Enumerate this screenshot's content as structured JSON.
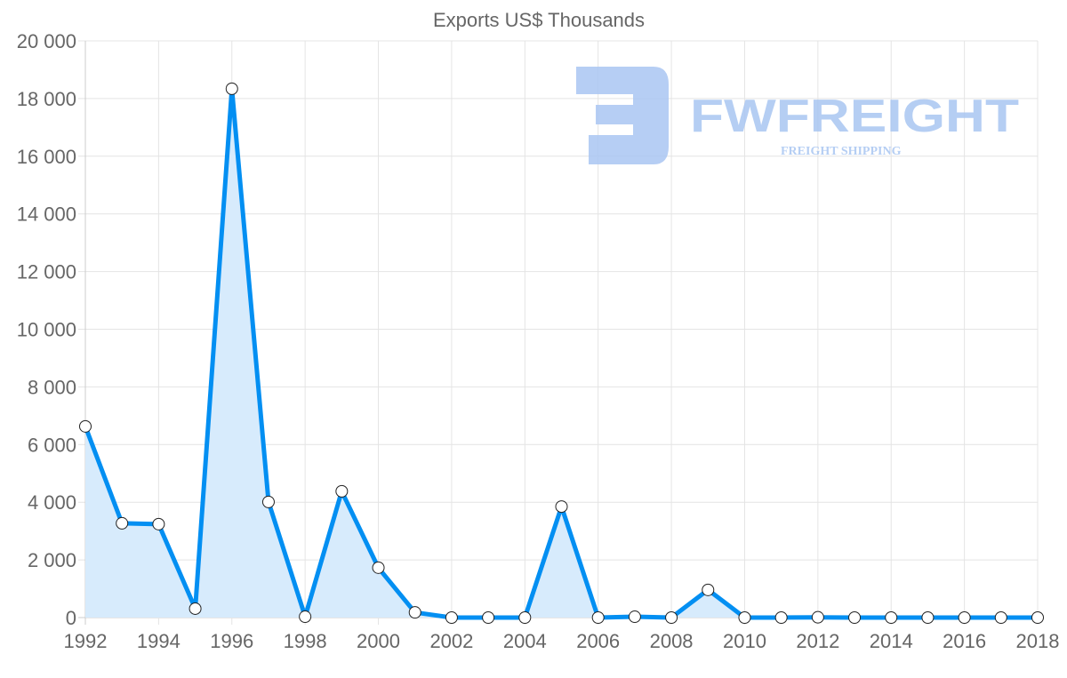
{
  "chart_data": {
    "type": "area",
    "title": "Exports US$ Thousands",
    "xlabel": "",
    "ylabel": "",
    "ylim": [
      0,
      20000
    ],
    "yticks": [
      "0",
      "2 000",
      "4 000",
      "6 000",
      "8 000",
      "10 000",
      "12 000",
      "14 000",
      "16 000",
      "18 000",
      "20 000"
    ],
    "xticks": [
      "1992",
      "1994",
      "1996",
      "1998",
      "2000",
      "2002",
      "2004",
      "2006",
      "2008",
      "2010",
      "2012",
      "2014",
      "2016",
      "2018"
    ],
    "grid": true,
    "x": [
      1992,
      1993,
      1994,
      1995,
      1996,
      1997,
      1998,
      1999,
      2000,
      2001,
      2002,
      2003,
      2004,
      2005,
      2006,
      2007,
      2008,
      2009,
      2010,
      2011,
      2012,
      2013,
      2014,
      2015,
      2016,
      2017,
      2018
    ],
    "series": [
      {
        "name": "Exports US$ Thousands",
        "values": [
          6630,
          3270,
          3240,
          310,
          18340,
          4010,
          30,
          4380,
          1730,
          180,
          0,
          0,
          0,
          3850,
          0,
          30,
          0,
          960,
          0,
          0,
          10,
          0,
          0,
          0,
          0,
          0,
          0
        ],
        "color": "#038ff2",
        "fill": "#d7ebfc"
      }
    ]
  },
  "logo": {
    "name": "FWFREIGHT",
    "tagline": "FREIGHT SHIPPING",
    "color": "#a9c6f2"
  }
}
